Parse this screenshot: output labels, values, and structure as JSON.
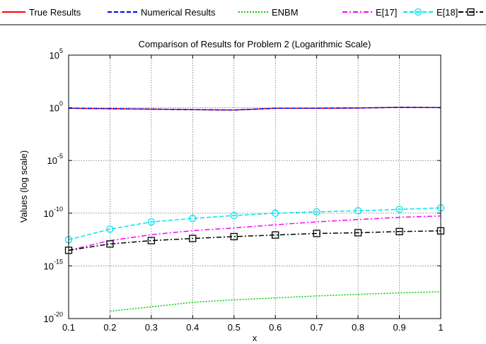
{
  "chart_data": {
    "type": "line",
    "title": "Comparison of Results for Problem 2 (Logarithmic Scale)",
    "xlabel": "x",
    "ylabel": "Values (log scale)",
    "y_scale": "log",
    "xlim": [
      0.1,
      1
    ],
    "ylim": [
      1e-20,
      100000.0
    ],
    "grid": true,
    "legend_placement": "top, outside plot, horizontal",
    "x_ticks": [
      "0.1",
      "0.2",
      "0.3",
      "0.4",
      "0.5",
      "0.6",
      "0.7",
      "0.8",
      "0.9",
      "1"
    ],
    "y_ticks": [
      {
        "base": "10",
        "exp": "5",
        "value": 100000.0
      },
      {
        "base": "10",
        "exp": "0",
        "value": 1
      },
      {
        "base": "10",
        "exp": "-5",
        "value": 1e-05
      },
      {
        "base": "10",
        "exp": "-10",
        "value": 1e-10
      },
      {
        "base": "10",
        "exp": "-15",
        "value": 1e-15
      },
      {
        "base": "10",
        "exp": "-20",
        "value": 1e-20
      }
    ],
    "x": [
      0.1,
      0.2,
      0.3,
      0.4,
      0.5,
      0.6,
      0.7,
      0.8,
      0.9,
      1.0
    ],
    "series": [
      {
        "name": "True Results",
        "color": "#ff0000",
        "dash": "solid",
        "marker": "none",
        "values": [
          0.905,
          0.819,
          0.741,
          0.67,
          0.607,
          0.9,
          0.91,
          0.95,
          1.1,
          1.05
        ]
      },
      {
        "name": "Numerical Results",
        "color": "#0000ff",
        "dash": "dashed",
        "marker": "none",
        "values": [
          0.905,
          0.819,
          0.741,
          0.67,
          0.607,
          0.9,
          0.91,
          0.95,
          1.1,
          1.05
        ]
      },
      {
        "name": "ENBM",
        "color": "#00cc00",
        "dash": "dotted",
        "marker": "none",
        "values": [
          null,
          5e-20,
          1.3e-19,
          3.5e-19,
          6e-19,
          9e-19,
          1.4e-18,
          2e-18,
          2.7e-18,
          3.5e-18
        ]
      },
      {
        "name": "E[17]",
        "color": "#ff00ff",
        "dash": "dashdot",
        "marker": "none",
        "values": [
          3e-14,
          2.5e-13,
          9e-13,
          2.2e-12,
          4e-12,
          8e-12,
          1.5e-11,
          2.5e-11,
          4e-11,
          5.5e-11
        ]
      },
      {
        "name": "E[18]",
        "color": "#00e5ee",
        "dash": "dashed",
        "marker": "circle",
        "values": [
          3e-13,
          3e-12,
          1.5e-11,
          3.2e-11,
          6e-11,
          1e-10,
          1.35e-10,
          1.7e-10,
          2.3e-10,
          3.2e-10
        ]
      },
      {
        "name": "",
        "color": "#000000",
        "dash": "dashdot",
        "marker": "square",
        "values": [
          3e-14,
          1.2e-13,
          2.5e-13,
          4e-13,
          6e-13,
          8.5e-13,
          1.2e-12,
          1.4e-12,
          1.8e-12,
          2.1e-12
        ]
      }
    ]
  }
}
